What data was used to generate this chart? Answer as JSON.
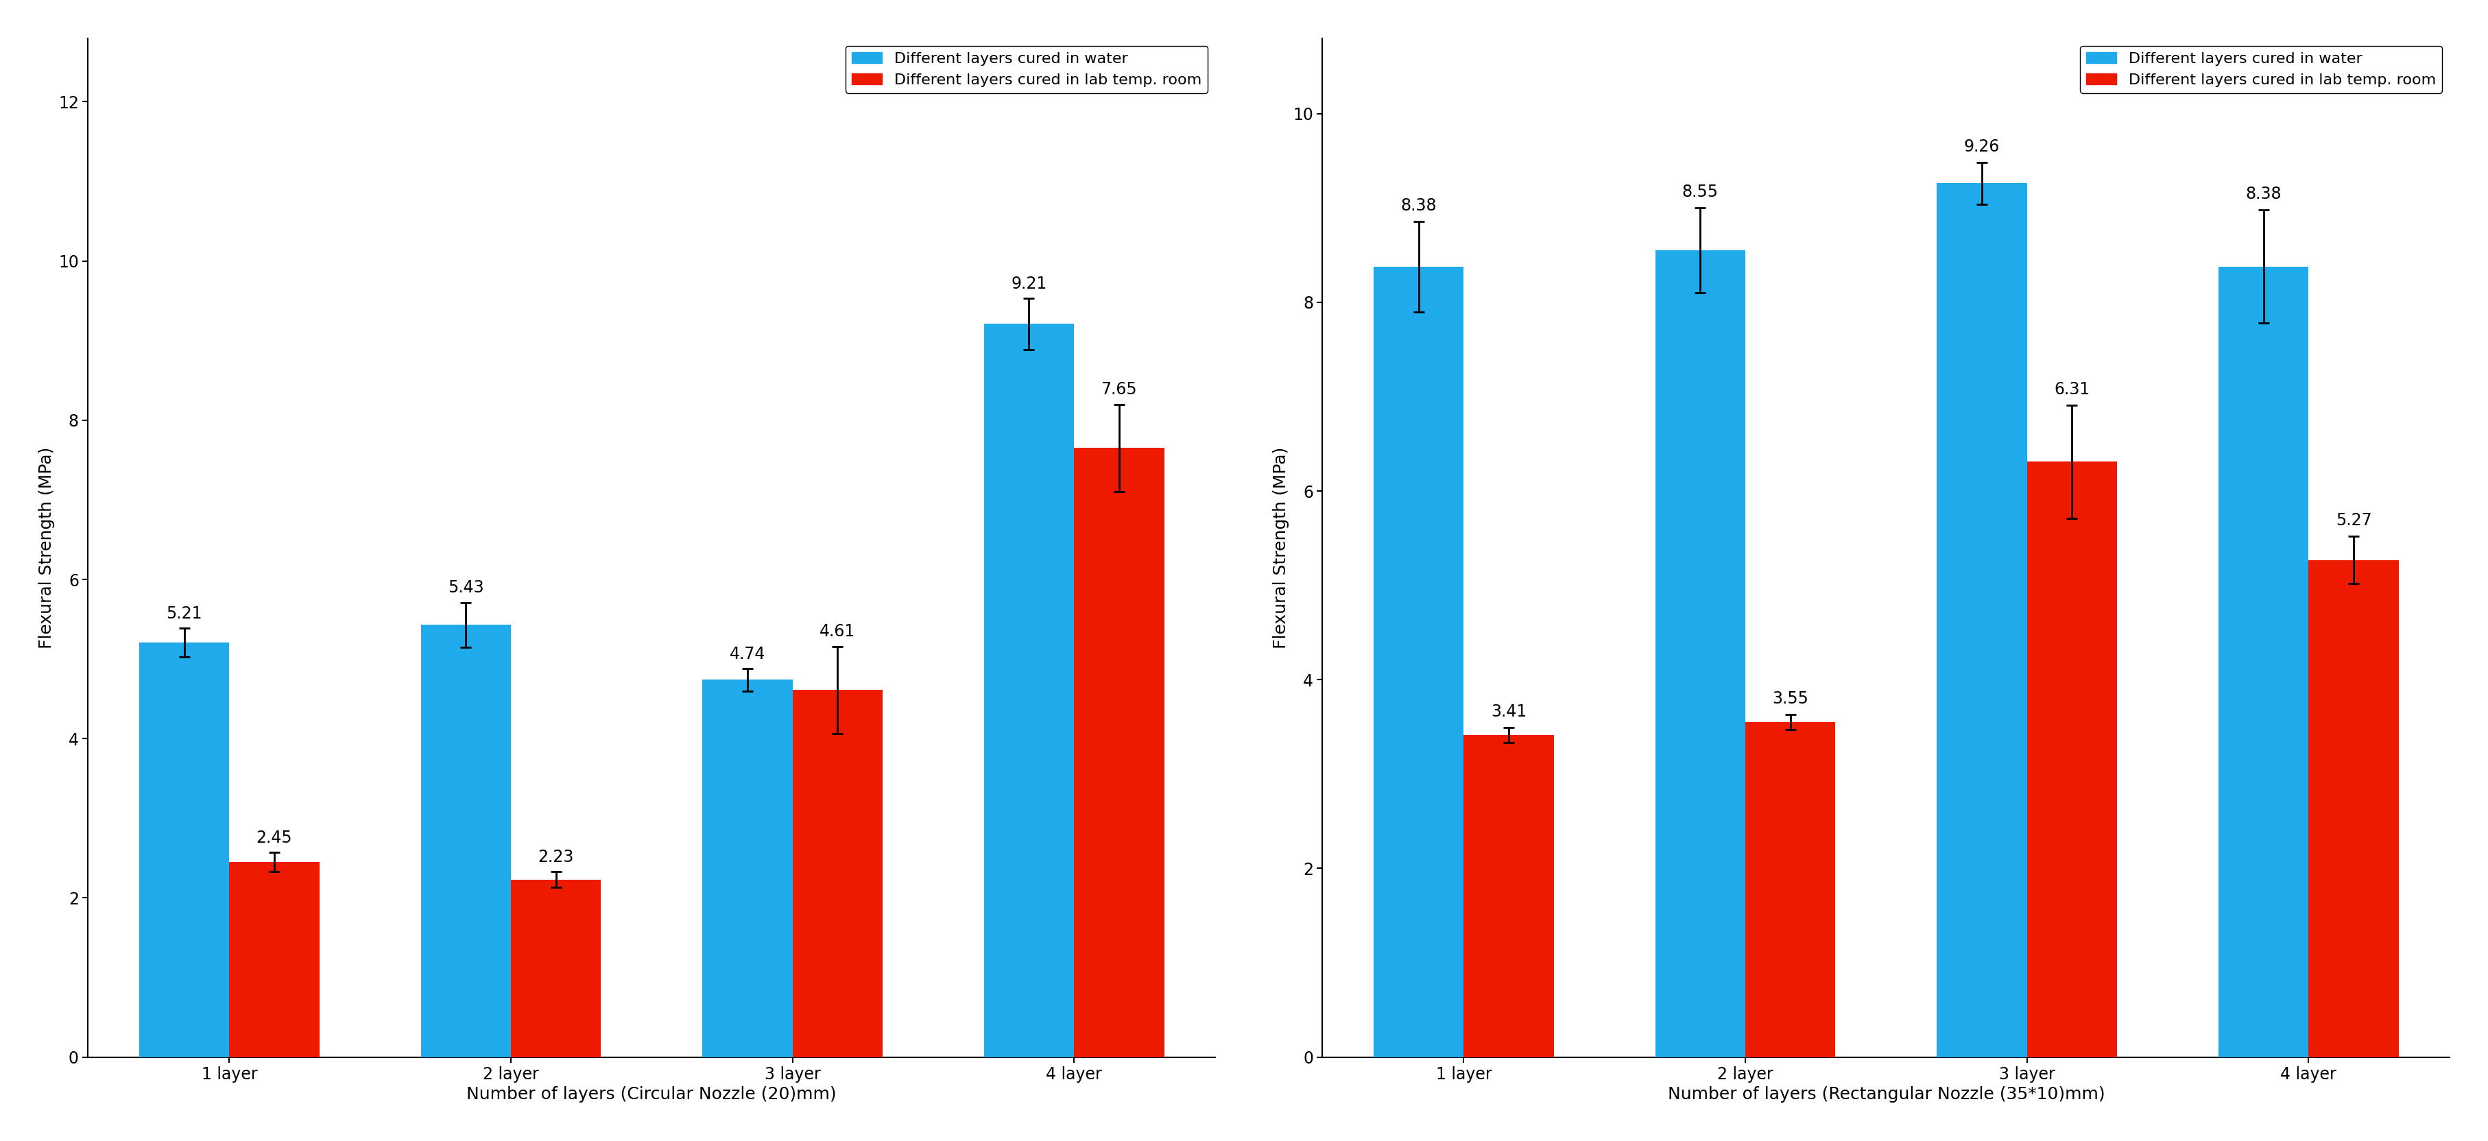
{
  "left": {
    "categories": [
      "1 layer",
      "2 layer",
      "3 layer",
      "4 layer"
    ],
    "water_values": [
      5.21,
      5.43,
      4.74,
      9.21
    ],
    "room_values": [
      2.45,
      2.23,
      4.61,
      7.65
    ],
    "water_errors": [
      0.18,
      0.28,
      0.14,
      0.32
    ],
    "room_errors": [
      0.12,
      0.1,
      0.55,
      0.55
    ],
    "xlabel": "Number of layers (Circular Nozzle (20)mm)",
    "ylabel": "Flexural Strength (MPa)",
    "ylim": [
      0,
      12.8
    ],
    "yticks": [
      0,
      2,
      4,
      6,
      8,
      10,
      12
    ]
  },
  "right": {
    "categories": [
      "1 layer",
      "2 layer",
      "3 layer",
      "4 layer"
    ],
    "water_values": [
      8.38,
      8.55,
      9.26,
      8.38
    ],
    "room_values": [
      3.41,
      3.55,
      6.31,
      5.27
    ],
    "water_errors": [
      0.48,
      0.45,
      0.22,
      0.6
    ],
    "room_errors": [
      0.08,
      0.08,
      0.6,
      0.25
    ],
    "xlabel": "Number of layers (Rectangular Nozzle (35*10)mm)",
    "ylabel": "Flexural Strength (MPa)",
    "ylim": [
      0,
      10.8
    ],
    "yticks": [
      0,
      2,
      4,
      6,
      8,
      10
    ]
  },
  "bar_width": 0.32,
  "water_color": "#1EAAEB",
  "room_color": "#EE1A00",
  "legend_water": "Different layers cured in water",
  "legend_room": "Different layers cured in lab temp. room",
  "tick_fontsize": 17,
  "annot_fontsize": 17,
  "legend_fontsize": 16,
  "xlabel_fontsize": 18,
  "ylabel_fontsize": 18
}
